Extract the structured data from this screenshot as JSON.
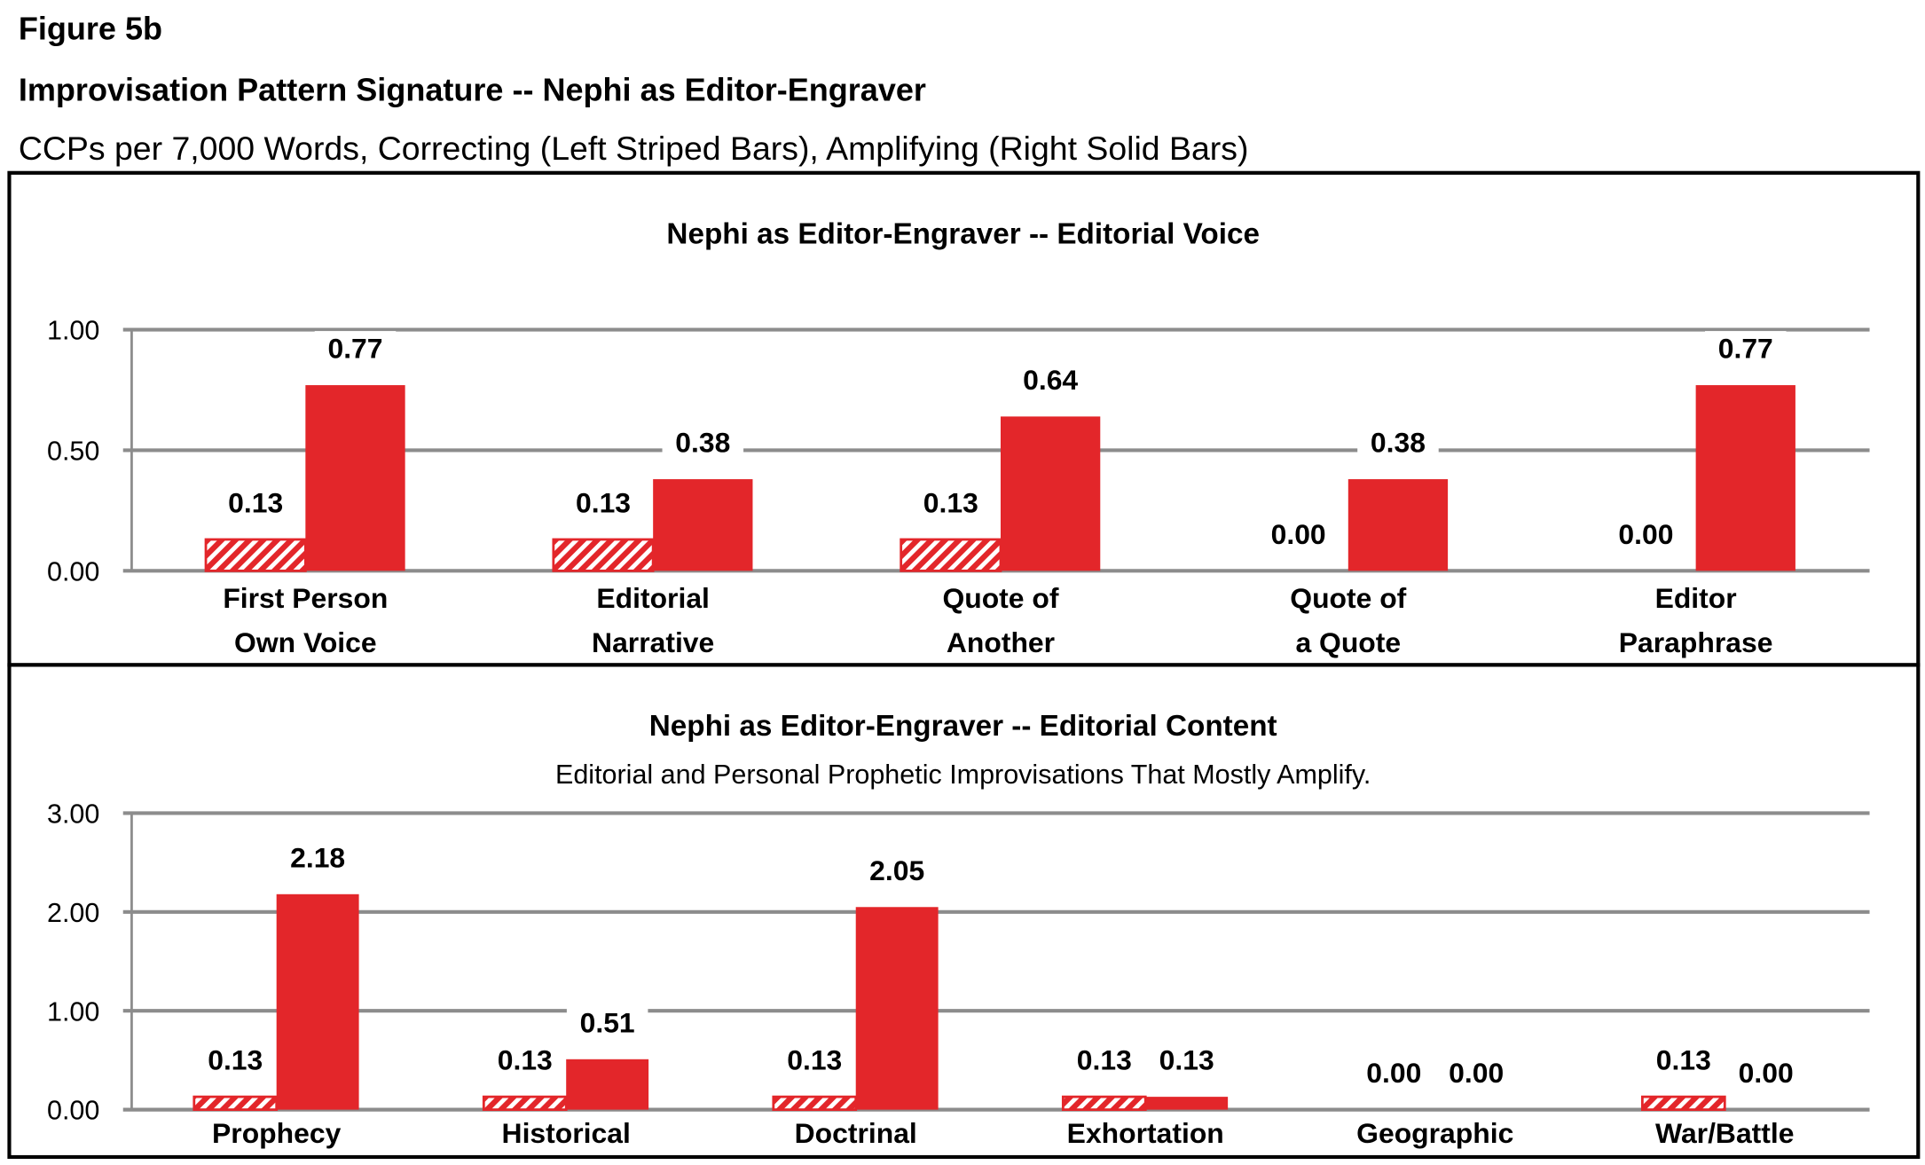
{
  "figure_label": "Figure 5b",
  "title": "Improvisation Pattern Signature -- Nephi as Editor-Engraver",
  "subtitle": "CCPs per 7,000 Words, Correcting (Left Striped Bars), Amplifying (Right Solid Bars)",
  "colors": {
    "bar": "#E3262A",
    "hatch_stripe": "#FFFFFF",
    "grid": "#8C8C8C",
    "frame": "#000000"
  },
  "chart_data": [
    {
      "type": "bar",
      "title": "Nephi as Editor-Engraver -- Editorial Voice",
      "subtitle": "",
      "categories": [
        [
          "First Person",
          "Own Voice"
        ],
        [
          "Editorial",
          "Narrative"
        ],
        [
          "Quote of",
          "Another"
        ],
        [
          "Quote of",
          "a Quote"
        ],
        [
          "Editor",
          "Paraphrase"
        ]
      ],
      "series": [
        {
          "style": "striped",
          "values": [
            0.13,
            0.13,
            0.13,
            0.0,
            0.0
          ]
        },
        {
          "style": "solid",
          "values": [
            0.77,
            0.38,
            0.64,
            0.38,
            0.77
          ]
        }
      ],
      "yticks": [
        "0.00",
        "0.50",
        "1.00"
      ],
      "ylim": [
        0,
        1
      ],
      "grid": true,
      "legend": "none"
    },
    {
      "type": "bar",
      "title": "Nephi as Editor-Engraver -- Editorial Content",
      "subtitle": "Editorial and Personal Prophetic Improvisations That Mostly Amplify.",
      "categories": [
        [
          "Prophecy"
        ],
        [
          "Historical"
        ],
        [
          "Doctrinal"
        ],
        [
          "Exhortation"
        ],
        [
          "Geographic"
        ],
        [
          "War/Battle"
        ]
      ],
      "series": [
        {
          "style": "striped",
          "values": [
            0.13,
            0.13,
            0.13,
            0.13,
            0.0,
            0.13
          ]
        },
        {
          "style": "solid",
          "values": [
            2.18,
            0.51,
            2.05,
            0.13,
            0.0,
            0.0
          ]
        }
      ],
      "yticks": [
        "0.00",
        "1.00",
        "2.00",
        "3.00"
      ],
      "ylim": [
        0,
        3
      ],
      "grid": true,
      "legend": "none"
    }
  ]
}
